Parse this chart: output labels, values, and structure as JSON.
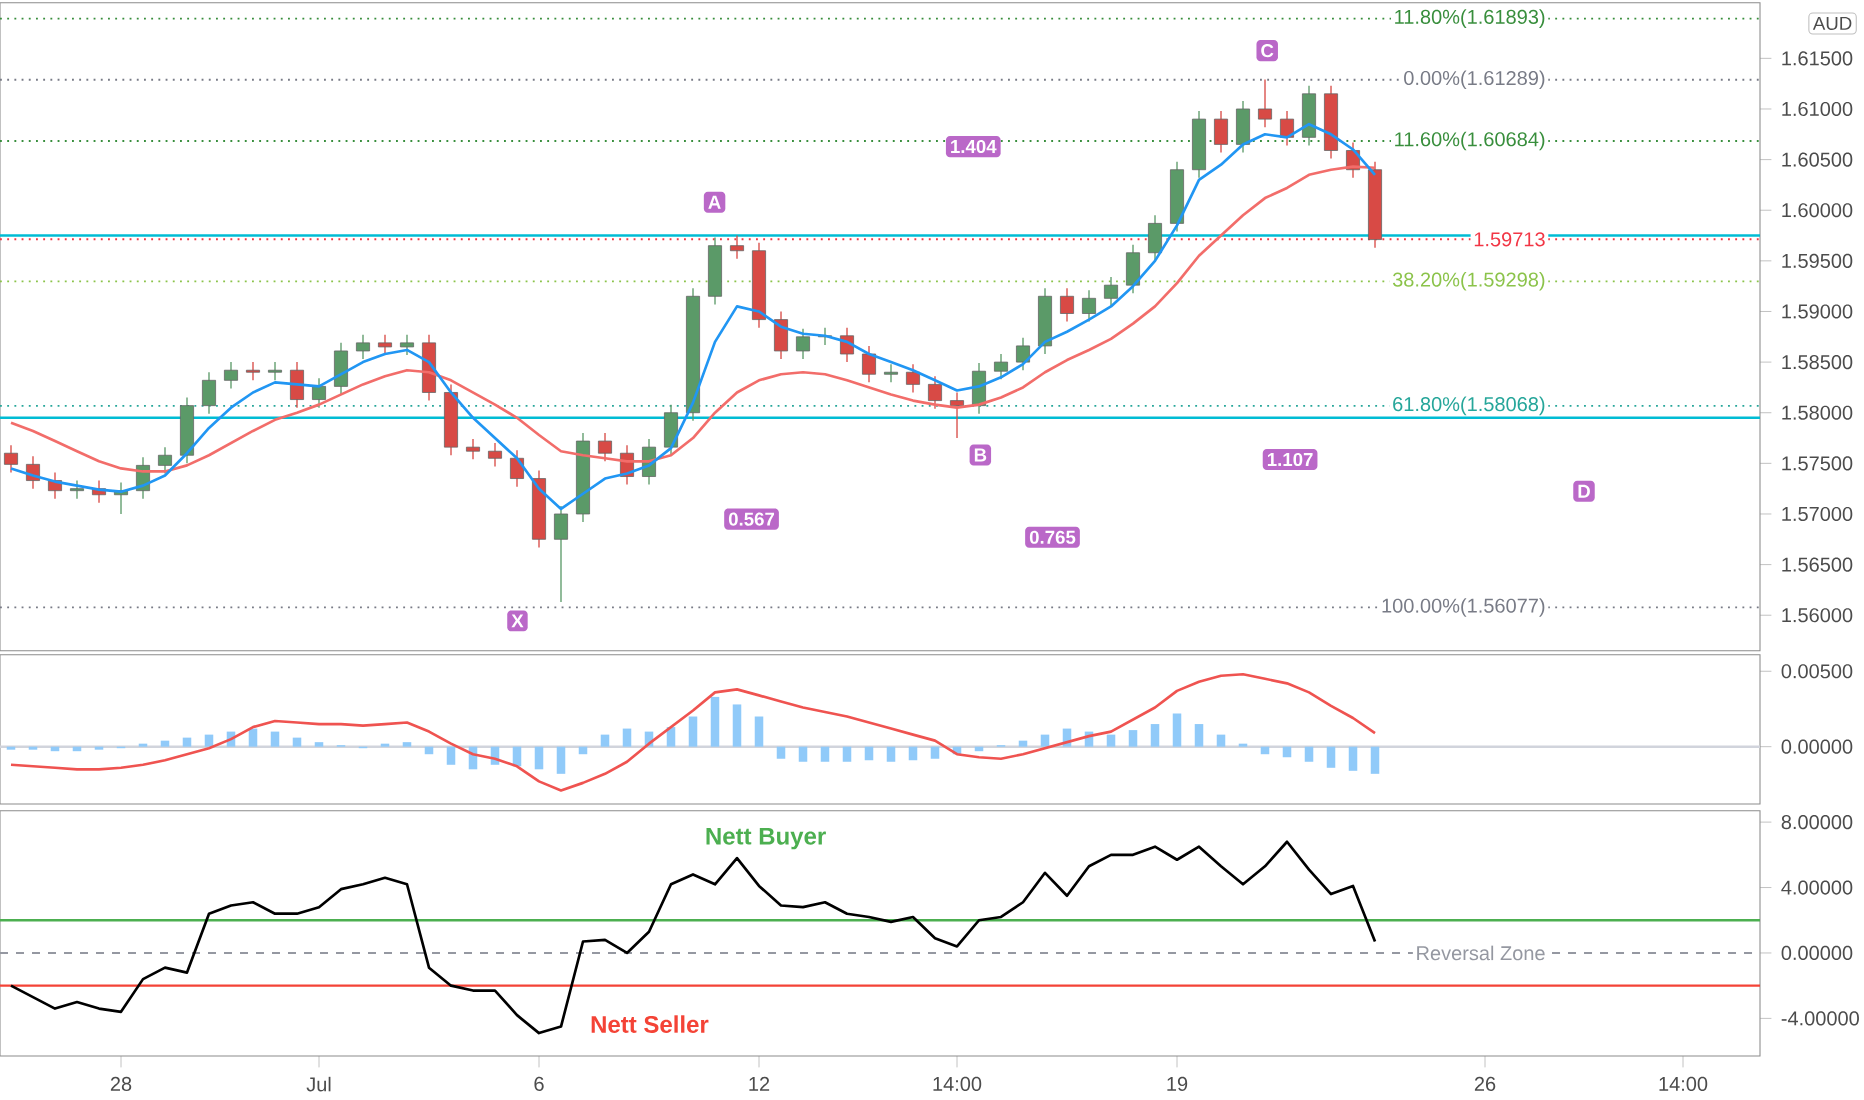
{
  "chart_data": [
    {
      "type": "candlestick",
      "ylabel": "AUD",
      "ylim": [
        1.5565,
        1.6205
      ],
      "tick_labels": "y",
      "grid": false,
      "categories": [
        null,
        null,
        null,
        null,
        null,
        null,
        null,
        null,
        null,
        null,
        null,
        null,
        null,
        null,
        null,
        null,
        null,
        null,
        null,
        null,
        null,
        null,
        null,
        null,
        null,
        null,
        null,
        null,
        null,
        null,
        null,
        null,
        null,
        null,
        null,
        null,
        null,
        null,
        null,
        null,
        null,
        null,
        null,
        null,
        null,
        null,
        null,
        null,
        null,
        null,
        null,
        null,
        null,
        null,
        null,
        null,
        null,
        null,
        null,
        null,
        null,
        null,
        null,
        null,
        null,
        null,
        null,
        null,
        null,
        null,
        null,
        null,
        null,
        null,
        null,
        null,
        null,
        null,
        null,
        null
      ],
      "yticks": [
        {
          "value": 1.56,
          "label": "1.56000"
        },
        {
          "value": 1.565,
          "label": "1.56500"
        },
        {
          "value": 1.57,
          "label": "1.57000"
        },
        {
          "value": 1.575,
          "label": "1.57500"
        },
        {
          "value": 1.58,
          "label": "1.58000"
        },
        {
          "value": 1.585,
          "label": "1.58500"
        },
        {
          "value": 1.59,
          "label": "1.59000"
        },
        {
          "value": 1.595,
          "label": "1.59500"
        },
        {
          "value": 1.6,
          "label": "1.60000"
        },
        {
          "value": 1.605,
          "label": "1.60500"
        },
        {
          "value": 1.61,
          "label": "1.61000"
        },
        {
          "value": 1.615,
          "label": "1.61500"
        }
      ],
      "series": [
        {
          "ohlc": [
            [
              1.576,
              1.5768,
              1.5741,
              1.5749
            ],
            [
              1.5749,
              1.5757,
              1.5725,
              1.5733
            ],
            [
              1.5733,
              1.5741,
              1.5715,
              1.5723
            ],
            [
              1.5723,
              1.5733,
              1.5715,
              1.5725
            ],
            [
              1.5725,
              1.5733,
              1.5711,
              1.5719
            ],
            [
              1.5719,
              1.5731,
              1.57,
              1.5723
            ],
            [
              1.5723,
              1.5756,
              1.5715,
              1.5748
            ],
            [
              1.5748,
              1.5766,
              1.574,
              1.5758
            ],
            [
              1.5758,
              1.5815,
              1.575,
              1.5807
            ],
            [
              1.5807,
              1.584,
              1.5799,
              1.5832
            ],
            [
              1.5832,
              1.585,
              1.5824,
              1.5842
            ],
            [
              1.5842,
              1.585,
              1.5832,
              1.584
            ],
            [
              1.584,
              1.585,
              1.5832,
              1.5842
            ],
            [
              1.5842,
              1.585,
              1.5805,
              1.5813
            ],
            [
              1.5813,
              1.5834,
              1.5805,
              1.5826
            ],
            [
              1.5826,
              1.5869,
              1.5818,
              1.5861
            ],
            [
              1.5861,
              1.5877,
              1.5853,
              1.5869
            ],
            [
              1.5869,
              1.5877,
              1.5857,
              1.5865
            ],
            [
              1.5865,
              1.5877,
              1.5857,
              1.5869
            ],
            [
              1.5869,
              1.5877,
              1.5812,
              1.582
            ],
            [
              1.582,
              1.5828,
              1.5758,
              1.5766
            ],
            [
              1.5766,
              1.5774,
              1.5754,
              1.5762
            ],
            [
              1.5762,
              1.577,
              1.5747,
              1.5755
            ],
            [
              1.5755,
              1.5763,
              1.5727,
              1.5735
            ],
            [
              1.5735,
              1.5743,
              1.5667,
              1.5675
            ],
            [
              1.5675,
              1.5708,
              1.5613,
              1.57
            ],
            [
              1.57,
              1.578,
              1.5692,
              1.5772
            ],
            [
              1.5772,
              1.578,
              1.5752,
              1.576
            ],
            [
              1.576,
              1.5768,
              1.5729,
              1.5737
            ],
            [
              1.5737,
              1.5774,
              1.5729,
              1.5766
            ],
            [
              1.5766,
              1.5808,
              1.5758,
              1.58
            ],
            [
              1.58,
              1.5923,
              1.5792,
              1.5915
            ],
            [
              1.5915,
              1.5973,
              1.5907,
              1.5965
            ],
            [
              1.5965,
              1.5975,
              1.5952,
              1.596
            ],
            [
              1.596,
              1.5968,
              1.5884,
              1.5892
            ],
            [
              1.5892,
              1.59,
              1.5853,
              1.5861
            ],
            [
              1.5861,
              1.5883,
              1.5853,
              1.5875
            ],
            [
              1.5875,
              1.5884,
              1.5867,
              1.5876
            ],
            [
              1.5876,
              1.5884,
              1.585,
              1.5858
            ],
            [
              1.5858,
              1.5866,
              1.583,
              1.5838
            ],
            [
              1.5838,
              1.5848,
              1.583,
              1.584
            ],
            [
              1.584,
              1.5848,
              1.582,
              1.5828
            ],
            [
              1.5828,
              1.5836,
              1.5804,
              1.5812
            ],
            [
              1.5812,
              1.582,
              1.5775,
              1.5807
            ],
            [
              1.5807,
              1.5849,
              1.5799,
              1.5841
            ],
            [
              1.5841,
              1.5858,
              1.5833,
              1.585
            ],
            [
              1.585,
              1.5874,
              1.5842,
              1.5866
            ],
            [
              1.5866,
              1.5923,
              1.5858,
              1.5915
            ],
            [
              1.5915,
              1.5923,
              1.589,
              1.5898
            ],
            [
              1.5898,
              1.5921,
              1.589,
              1.5913
            ],
            [
              1.5913,
              1.5934,
              1.5905,
              1.5926
            ],
            [
              1.5926,
              1.5966,
              1.5918,
              1.5958
            ],
            [
              1.5958,
              1.5995,
              1.595,
              1.5987
            ],
            [
              1.5987,
              1.6048,
              1.5979,
              1.604
            ],
            [
              1.604,
              1.6098,
              1.6032,
              1.609
            ],
            [
              1.609,
              1.6098,
              1.6057,
              1.6065
            ],
            [
              1.6065,
              1.6108,
              1.6057,
              1.61
            ],
            [
              1.61,
              1.6129,
              1.6082,
              1.609
            ],
            [
              1.609,
              1.6098,
              1.6064,
              1.6072
            ],
            [
              1.6072,
              1.6123,
              1.6064,
              1.6115
            ],
            [
              1.6115,
              1.6123,
              1.6051,
              1.6059
            ],
            [
              1.6059,
              1.6067,
              1.6032,
              1.604
            ],
            [
              1.604,
              1.6048,
              1.5963,
              1.5971
            ],
            null,
            null,
            null,
            null,
            null,
            null,
            null,
            null,
            null,
            null,
            null,
            null,
            null,
            null,
            null,
            null,
            null
          ]
        },
        {
          "type": "line",
          "color": "#f26d6a",
          "values": [
            1.579,
            1.5782,
            1.5772,
            1.5762,
            1.5752,
            1.5745,
            1.5742,
            1.5742,
            1.5748,
            1.5758,
            1.577,
            1.5782,
            1.5793,
            1.58,
            1.5808,
            1.5818,
            1.5828,
            1.5836,
            1.5842,
            1.584,
            1.5832,
            1.582,
            1.5808,
            1.5795,
            1.5778,
            1.5762,
            1.5758,
            1.5755,
            1.5752,
            1.5752,
            1.5758,
            1.5775,
            1.58,
            1.582,
            1.5832,
            1.5838,
            1.584,
            1.5838,
            1.5832,
            1.5825,
            1.5818,
            1.5812,
            1.5808,
            1.5805,
            1.5808,
            1.5815,
            1.5825,
            1.584,
            1.5852,
            1.5862,
            1.5873,
            1.5888,
            1.5905,
            1.5928,
            1.5955,
            1.5975,
            1.5995,
            1.6012,
            1.6022,
            1.6035,
            1.604,
            1.6043,
            1.6042,
            null,
            null,
            null,
            null,
            null,
            null,
            null,
            null,
            null,
            null,
            null,
            null,
            null,
            null,
            null,
            null,
            null
          ]
        },
        {
          "type": "line",
          "color": "#2196f3",
          "values": [
            1.5745,
            1.5738,
            1.5732,
            1.5728,
            1.5724,
            1.5722,
            1.5728,
            1.5738,
            1.576,
            1.5785,
            1.5805,
            1.582,
            1.583,
            1.5828,
            1.5826,
            1.5838,
            1.585,
            1.5858,
            1.5862,
            1.585,
            1.582,
            1.5795,
            1.5775,
            1.5755,
            1.5725,
            1.5705,
            1.572,
            1.5735,
            1.574,
            1.5748,
            1.5765,
            1.581,
            1.587,
            1.5905,
            1.59,
            1.5885,
            1.5878,
            1.5876,
            1.587,
            1.5858,
            1.585,
            1.5842,
            1.5832,
            1.5822,
            1.5826,
            1.5835,
            1.5848,
            1.587,
            1.588,
            1.5892,
            1.5905,
            1.5925,
            1.595,
            1.5985,
            1.603,
            1.6045,
            1.6065,
            1.6075,
            1.6072,
            1.6085,
            1.6075,
            1.606,
            1.6035,
            null,
            null,
            null,
            null,
            null,
            null,
            null,
            null,
            null,
            null,
            null,
            null,
            null,
            null,
            null,
            null,
            null
          ]
        }
      ],
      "ref_lines": [
        {
          "axis": "y",
          "value": 1.61893,
          "label": "11.80%(1.61893)",
          "color": "#388e3c",
          "line_style": "dotted"
        },
        {
          "axis": "y",
          "value": 1.61289,
          "label": "0.00%(1.61289)",
          "color": "#787b86",
          "line_style": "dotted"
        },
        {
          "axis": "y",
          "value": 1.60684,
          "label": "11.60%(1.60684)",
          "color": "#388e3c",
          "line_style": "dotted"
        },
        {
          "axis": "y",
          "value": 1.59298,
          "label": "38.20%(1.59298)",
          "color": "#8bc34a",
          "line_style": "dotted"
        },
        {
          "axis": "y",
          "value": 1.58068,
          "label": "61.80%(1.58068)",
          "color": "#26a69a",
          "line_style": "dotted"
        },
        {
          "axis": "y",
          "value": 1.56077,
          "label": "100.00%(1.56077)",
          "color": "#787b86",
          "line_style": "dotted"
        },
        {
          "axis": "y",
          "value": 1.5975,
          "color": "#00bcd4",
          "line_style": "solid"
        },
        {
          "axis": "y",
          "value": 1.5795,
          "color": "#00bcd4",
          "line_style": "solid"
        },
        {
          "axis": "y",
          "value": 1.59713,
          "label": "1.59713",
          "color": "#f23645",
          "line_style": "dotted"
        }
      ],
      "annotations": [
        "X",
        "A",
        "B",
        "C",
        "D",
        "1.404",
        "0.567",
        "0.765",
        "1.107"
      ]
    },
    {
      "type": "line",
      "ylim": [
        -0.0038,
        0.0061
      ],
      "tick_labels": "y",
      "grid": false,
      "categories": [
        null,
        null,
        null,
        null,
        null,
        null,
        null,
        null,
        null,
        null,
        null,
        null,
        null,
        null,
        null,
        null,
        null,
        null,
        null,
        null,
        null,
        null,
        null,
        null,
        null,
        null,
        null,
        null,
        null,
        null,
        null,
        null,
        null,
        null,
        null,
        null,
        null,
        null,
        null,
        null,
        null,
        null,
        null,
        null,
        null,
        null,
        null,
        null,
        null,
        null,
        null,
        null,
        null,
        null,
        null,
        null,
        null,
        null,
        null,
        null,
        null,
        null,
        null,
        null,
        null,
        null,
        null,
        null,
        null,
        null,
        null,
        null,
        null,
        null,
        null,
        null,
        null,
        null,
        null,
        null
      ],
      "yticks": [
        {
          "value": 0,
          "label": "0.00000"
        },
        {
          "value": 0.005,
          "label": "0.00500"
        }
      ],
      "series": [
        {
          "type": "bar",
          "color": "#90caf9",
          "values": [
            -0.0002,
            -0.0002,
            -0.0003,
            -0.0003,
            -0.0002,
            -0.0001,
            0.0002,
            0.0004,
            0.0006,
            0.0008,
            0.001,
            0.0012,
            0.001,
            0.0006,
            0.0003,
            0.0001,
            -0.0001,
            0.0002,
            0.0003,
            -0.0005,
            -0.0012,
            -0.0015,
            -0.0012,
            -0.0013,
            -0.0015,
            -0.0018,
            -0.0005,
            0.0008,
            0.0012,
            0.001,
            0.0013,
            0.002,
            0.0033,
            0.0028,
            0.002,
            -0.0008,
            -0.001,
            -0.001,
            -0.001,
            -0.0009,
            -0.001,
            -0.0009,
            -0.0008,
            -0.0005,
            -0.0003,
            0.0001,
            0.0004,
            0.0008,
            0.0012,
            0.001,
            0.0008,
            0.0011,
            0.0015,
            0.0022,
            0.0015,
            0.0008,
            0.0002,
            -0.0005,
            -0.0007,
            -0.001,
            -0.0014,
            -0.0016,
            -0.0018,
            null,
            null,
            null,
            null,
            null,
            null,
            null,
            null,
            null,
            null,
            null,
            null,
            null,
            null,
            null,
            null,
            null
          ]
        },
        {
          "color": "#ef5350",
          "values": [
            -0.0012,
            -0.0013,
            -0.0014,
            -0.0015,
            -0.0015,
            -0.0014,
            -0.0012,
            -0.0009,
            -0.0005,
            -0.0001,
            0.0005,
            0.0013,
            0.0017,
            0.0016,
            0.0015,
            0.0015,
            0.0014,
            0.0015,
            0.0016,
            0.001,
            0.0002,
            -0.0005,
            -0.0008,
            -0.0013,
            -0.0023,
            -0.0029,
            -0.0024,
            -0.0018,
            -0.001,
            0.0002,
            0.0013,
            0.0024,
            0.0036,
            0.0038,
            0.0034,
            0.003,
            0.0026,
            0.0023,
            0.002,
            0.0016,
            0.0012,
            0.0008,
            0.0004,
            -0.0005,
            -0.0007,
            -0.0008,
            -0.0005,
            -0.0001,
            0.0003,
            0.0007,
            0.001,
            0.0018,
            0.0026,
            0.0037,
            0.0043,
            0.0047,
            0.0048,
            0.0045,
            0.0042,
            0.0036,
            0.0027,
            0.0019,
            0.0009,
            null,
            null,
            null,
            null,
            null,
            null,
            null,
            null,
            null,
            null,
            null,
            null,
            null,
            null,
            null,
            null,
            null
          ]
        }
      ],
      "ref_lines": [
        {
          "axis": "y",
          "value": 0,
          "color": "#d1d4dc",
          "line_style": "solid"
        }
      ]
    },
    {
      "type": "line",
      "ylim": [
        -6.3,
        8.7
      ],
      "grid": false,
      "categories": [
        null,
        null,
        null,
        null,
        null,
        "28",
        null,
        null,
        null,
        null,
        null,
        null,
        null,
        null,
        "Jul",
        null,
        null,
        null,
        null,
        null,
        null,
        null,
        null,
        null,
        "6",
        null,
        null,
        null,
        null,
        null,
        null,
        null,
        null,
        null,
        "12",
        null,
        null,
        null,
        null,
        null,
        null,
        null,
        null,
        "14:00",
        null,
        null,
        null,
        null,
        null,
        null,
        null,
        null,
        null,
        "19",
        null,
        null,
        null,
        null,
        null,
        null,
        null,
        null,
        null,
        null,
        null,
        null,
        null,
        "26",
        null,
        null,
        null,
        null,
        null,
        null,
        null,
        null,
        "14:00",
        null,
        null,
        null
      ],
      "yticks": [
        {
          "value": -4,
          "label": "-4.00000"
        },
        {
          "value": 0,
          "label": "0.00000"
        },
        {
          "value": 4,
          "label": "4.00000"
        },
        {
          "value": 8,
          "label": "8.00000"
        }
      ],
      "series": [
        {
          "color": "#000000",
          "values": [
            -2.0,
            -2.7,
            -3.4,
            -3.0,
            -3.4,
            -3.6,
            -1.6,
            -0.9,
            -1.2,
            2.4,
            2.9,
            3.1,
            2.4,
            2.4,
            2.8,
            3.9,
            4.2,
            4.6,
            4.2,
            -0.9,
            -2.0,
            -2.3,
            -2.3,
            -3.8,
            -4.9,
            -4.5,
            0.7,
            0.8,
            0.0,
            1.3,
            4.2,
            4.8,
            4.2,
            5.8,
            4.1,
            2.9,
            2.8,
            3.1,
            2.4,
            2.2,
            1.9,
            2.2,
            0.9,
            0.4,
            2.0,
            2.2,
            3.1,
            4.9,
            3.5,
            5.3,
            6.0,
            6.0,
            6.5,
            5.7,
            6.5,
            5.3,
            4.2,
            5.3,
            6.8,
            5.1,
            3.6,
            4.1,
            0.7,
            null,
            null,
            null,
            null,
            null,
            null,
            null,
            null,
            null,
            null,
            null,
            null,
            null,
            null,
            null,
            null,
            null
          ]
        }
      ],
      "ref_lines": [
        {
          "axis": "y",
          "value": 2,
          "color": "#4caf50",
          "line_style": "solid"
        },
        {
          "axis": "y",
          "value": 0,
          "label": "Reversal Zone",
          "color": "#9598a1",
          "line_style": "dashed"
        },
        {
          "axis": "y",
          "value": -2,
          "color": "#f44336",
          "line_style": "solid"
        }
      ],
      "annotations": [
        "Nett Buyer",
        "Nett Seller"
      ]
    }
  ]
}
